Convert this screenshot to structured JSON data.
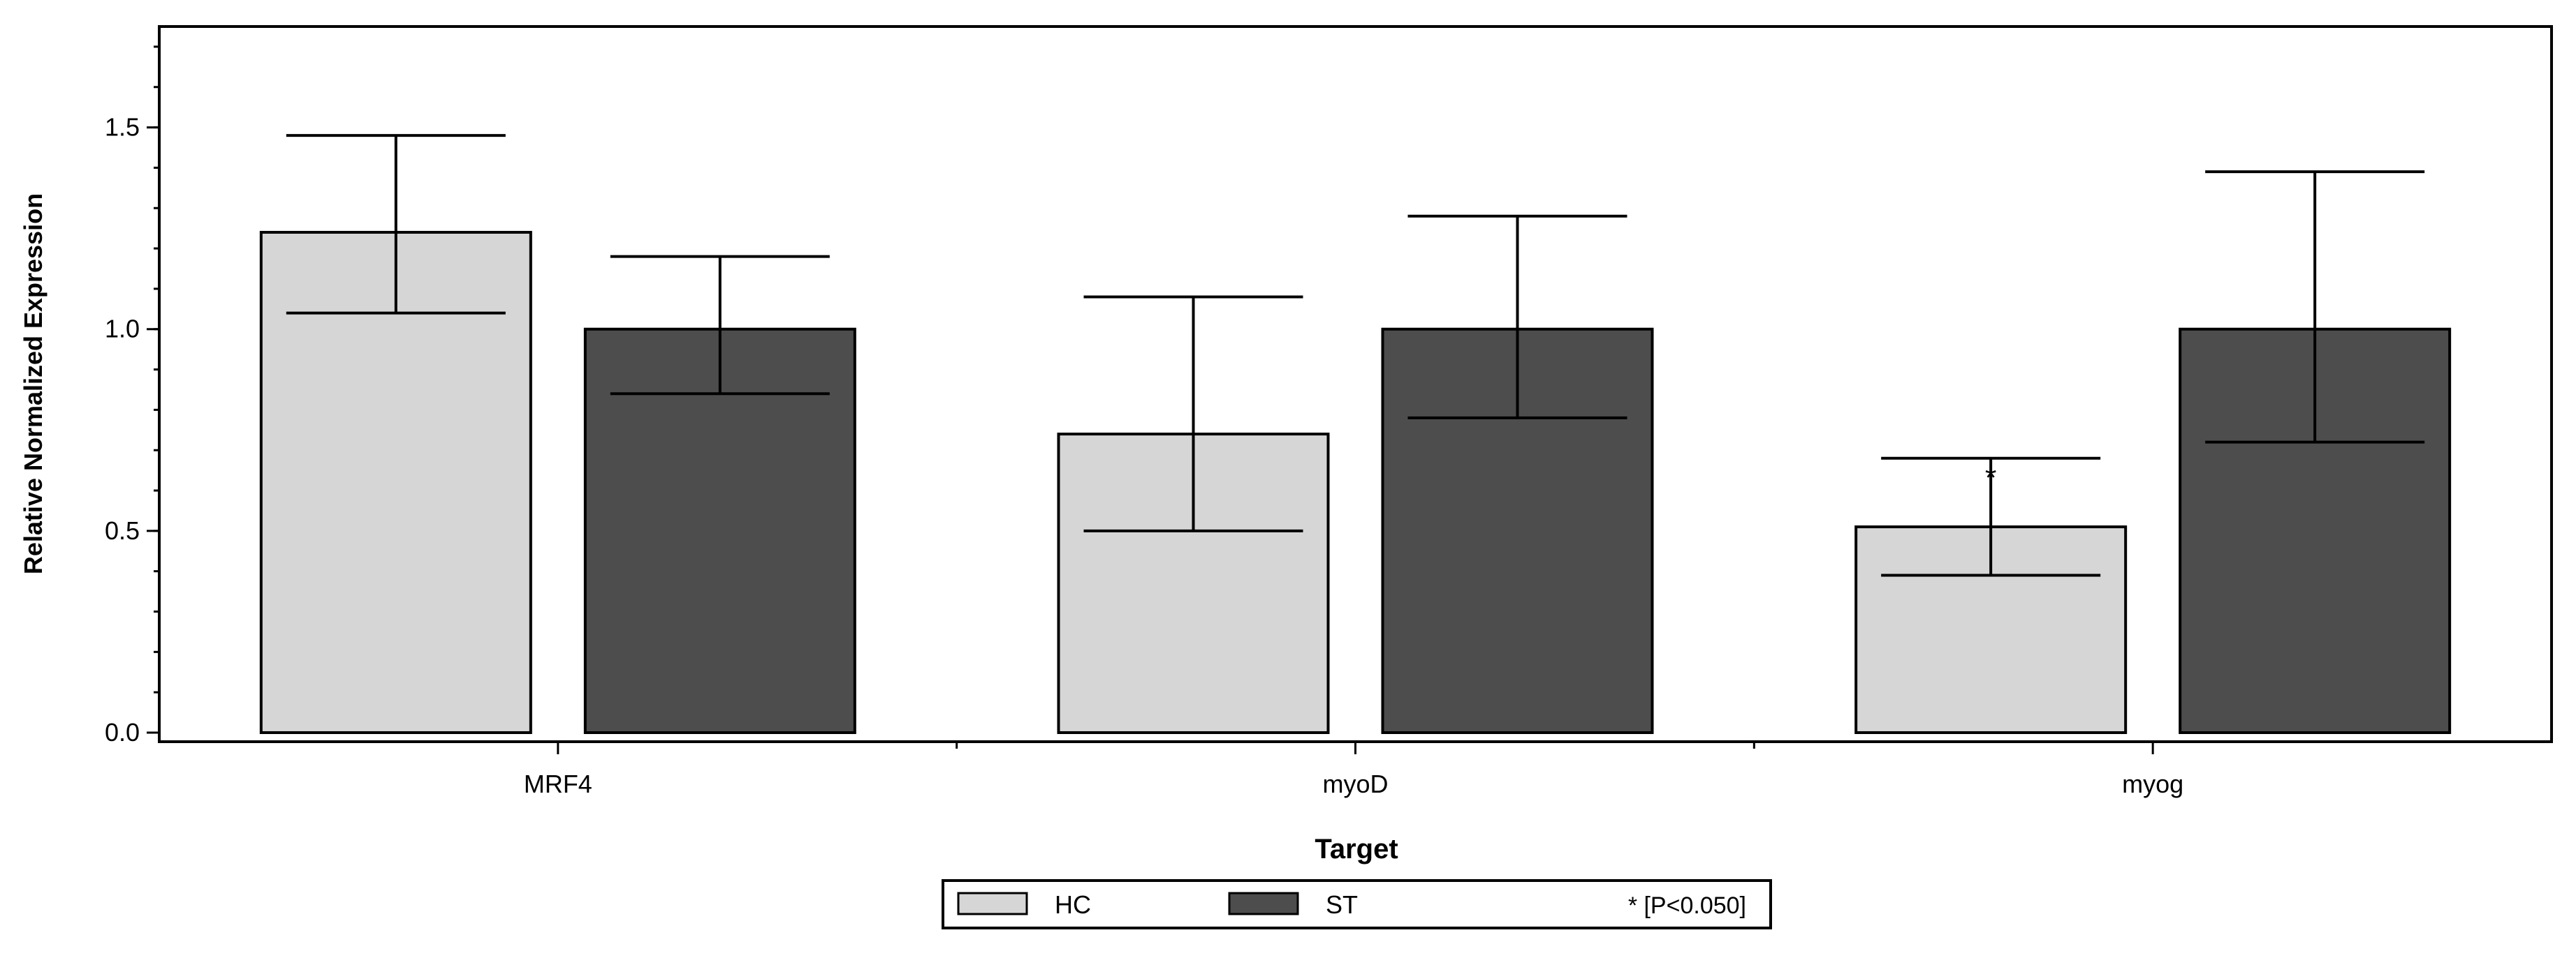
{
  "chart_data": {
    "type": "bar",
    "xlabel": "Target",
    "ylabel": "Relative Normalized Expression",
    "categories": [
      "MRF4",
      "myoD",
      "myog"
    ],
    "series": [
      {
        "name": "HC",
        "color": "#d6d6d6",
        "values": [
          1.24,
          0.74,
          0.51
        ],
        "error_low": [
          1.04,
          0.5,
          0.39
        ],
        "error_high": [
          1.48,
          1.08,
          0.68
        ]
      },
      {
        "name": "ST",
        "color": "#4d4d4d",
        "values": [
          1.0,
          1.0,
          1.0
        ],
        "error_low": [
          0.84,
          0.78,
          0.72
        ],
        "error_high": [
          1.18,
          1.28,
          1.39
        ]
      }
    ],
    "ylim": [
      0,
      1.75
    ],
    "yticks": [
      "0.0",
      "0.5",
      "1.0",
      "1.5"
    ],
    "ytick_values": [
      0,
      0.5,
      1.0,
      1.5
    ],
    "y_minor_step": 0.1,
    "grid": false,
    "annotations": [
      {
        "text": "*",
        "category": "myog",
        "series": "HC"
      }
    ],
    "legend": {
      "placement": "bottom-center",
      "items": [
        "HC",
        "ST"
      ],
      "note": "* [P<0.050]"
    }
  }
}
